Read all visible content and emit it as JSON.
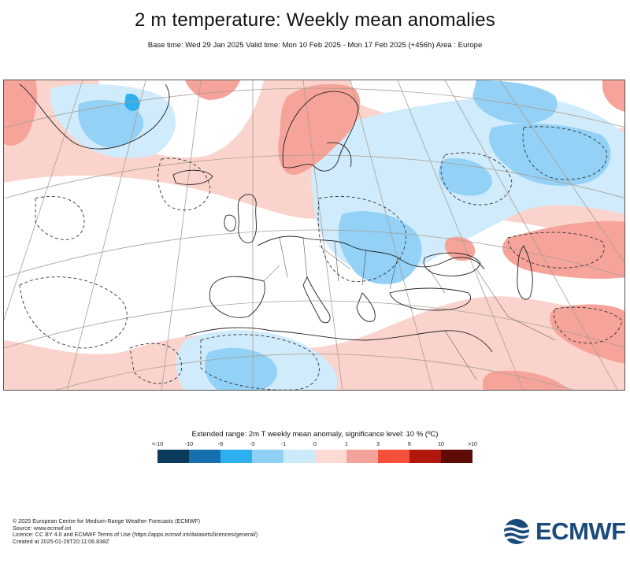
{
  "header": {
    "title": "2 m temperature: Weekly mean anomalies",
    "subtitle": "Base time: Wed 29 Jan 2025 Valid time: Mon 10 Feb 2025 - Mon 17 Feb 2025 (+456h) Area : Europe"
  },
  "legend": {
    "title": "Extended range: 2m T weekly mean anomaly, significance level: 10 % (ºC)",
    "ticks": [
      "<-10",
      "-10",
      "-6",
      "-3",
      "-1",
      "0",
      "1",
      "3",
      "6",
      "10",
      ">10"
    ],
    "colors": [
      "#0b3a5c",
      "#1670b0",
      "#2fb0ee",
      "#8fd1f6",
      "#cdeafb",
      "#fddad4",
      "#f5a39a",
      "#f4503a",
      "#b0180e",
      "#5e0a06"
    ]
  },
  "map": {
    "colors": {
      "warm_light": "#fbd3cd",
      "warm_mid": "#f6a39a",
      "cold_light": "#d0ebfb",
      "cold_mid": "#93d1f6",
      "cold_deep": "#2fb0ee",
      "neutral": "#ffffff"
    }
  },
  "footer": {
    "line1": "© 2025 European Centre for Medium-Range Weather Forecasts (ECMWF)",
    "line2": "Source: www.ecmwf.int",
    "line3": "Licence: CC BY 4.0 and ECMWF Terms of Use (https://apps.ecmwf.int/datasets/licences/general/)",
    "line4": "Created at 2025-01-29T20:11:06.838Z"
  },
  "logo": {
    "text": "ECMWF",
    "color": "#1a4a7a"
  }
}
